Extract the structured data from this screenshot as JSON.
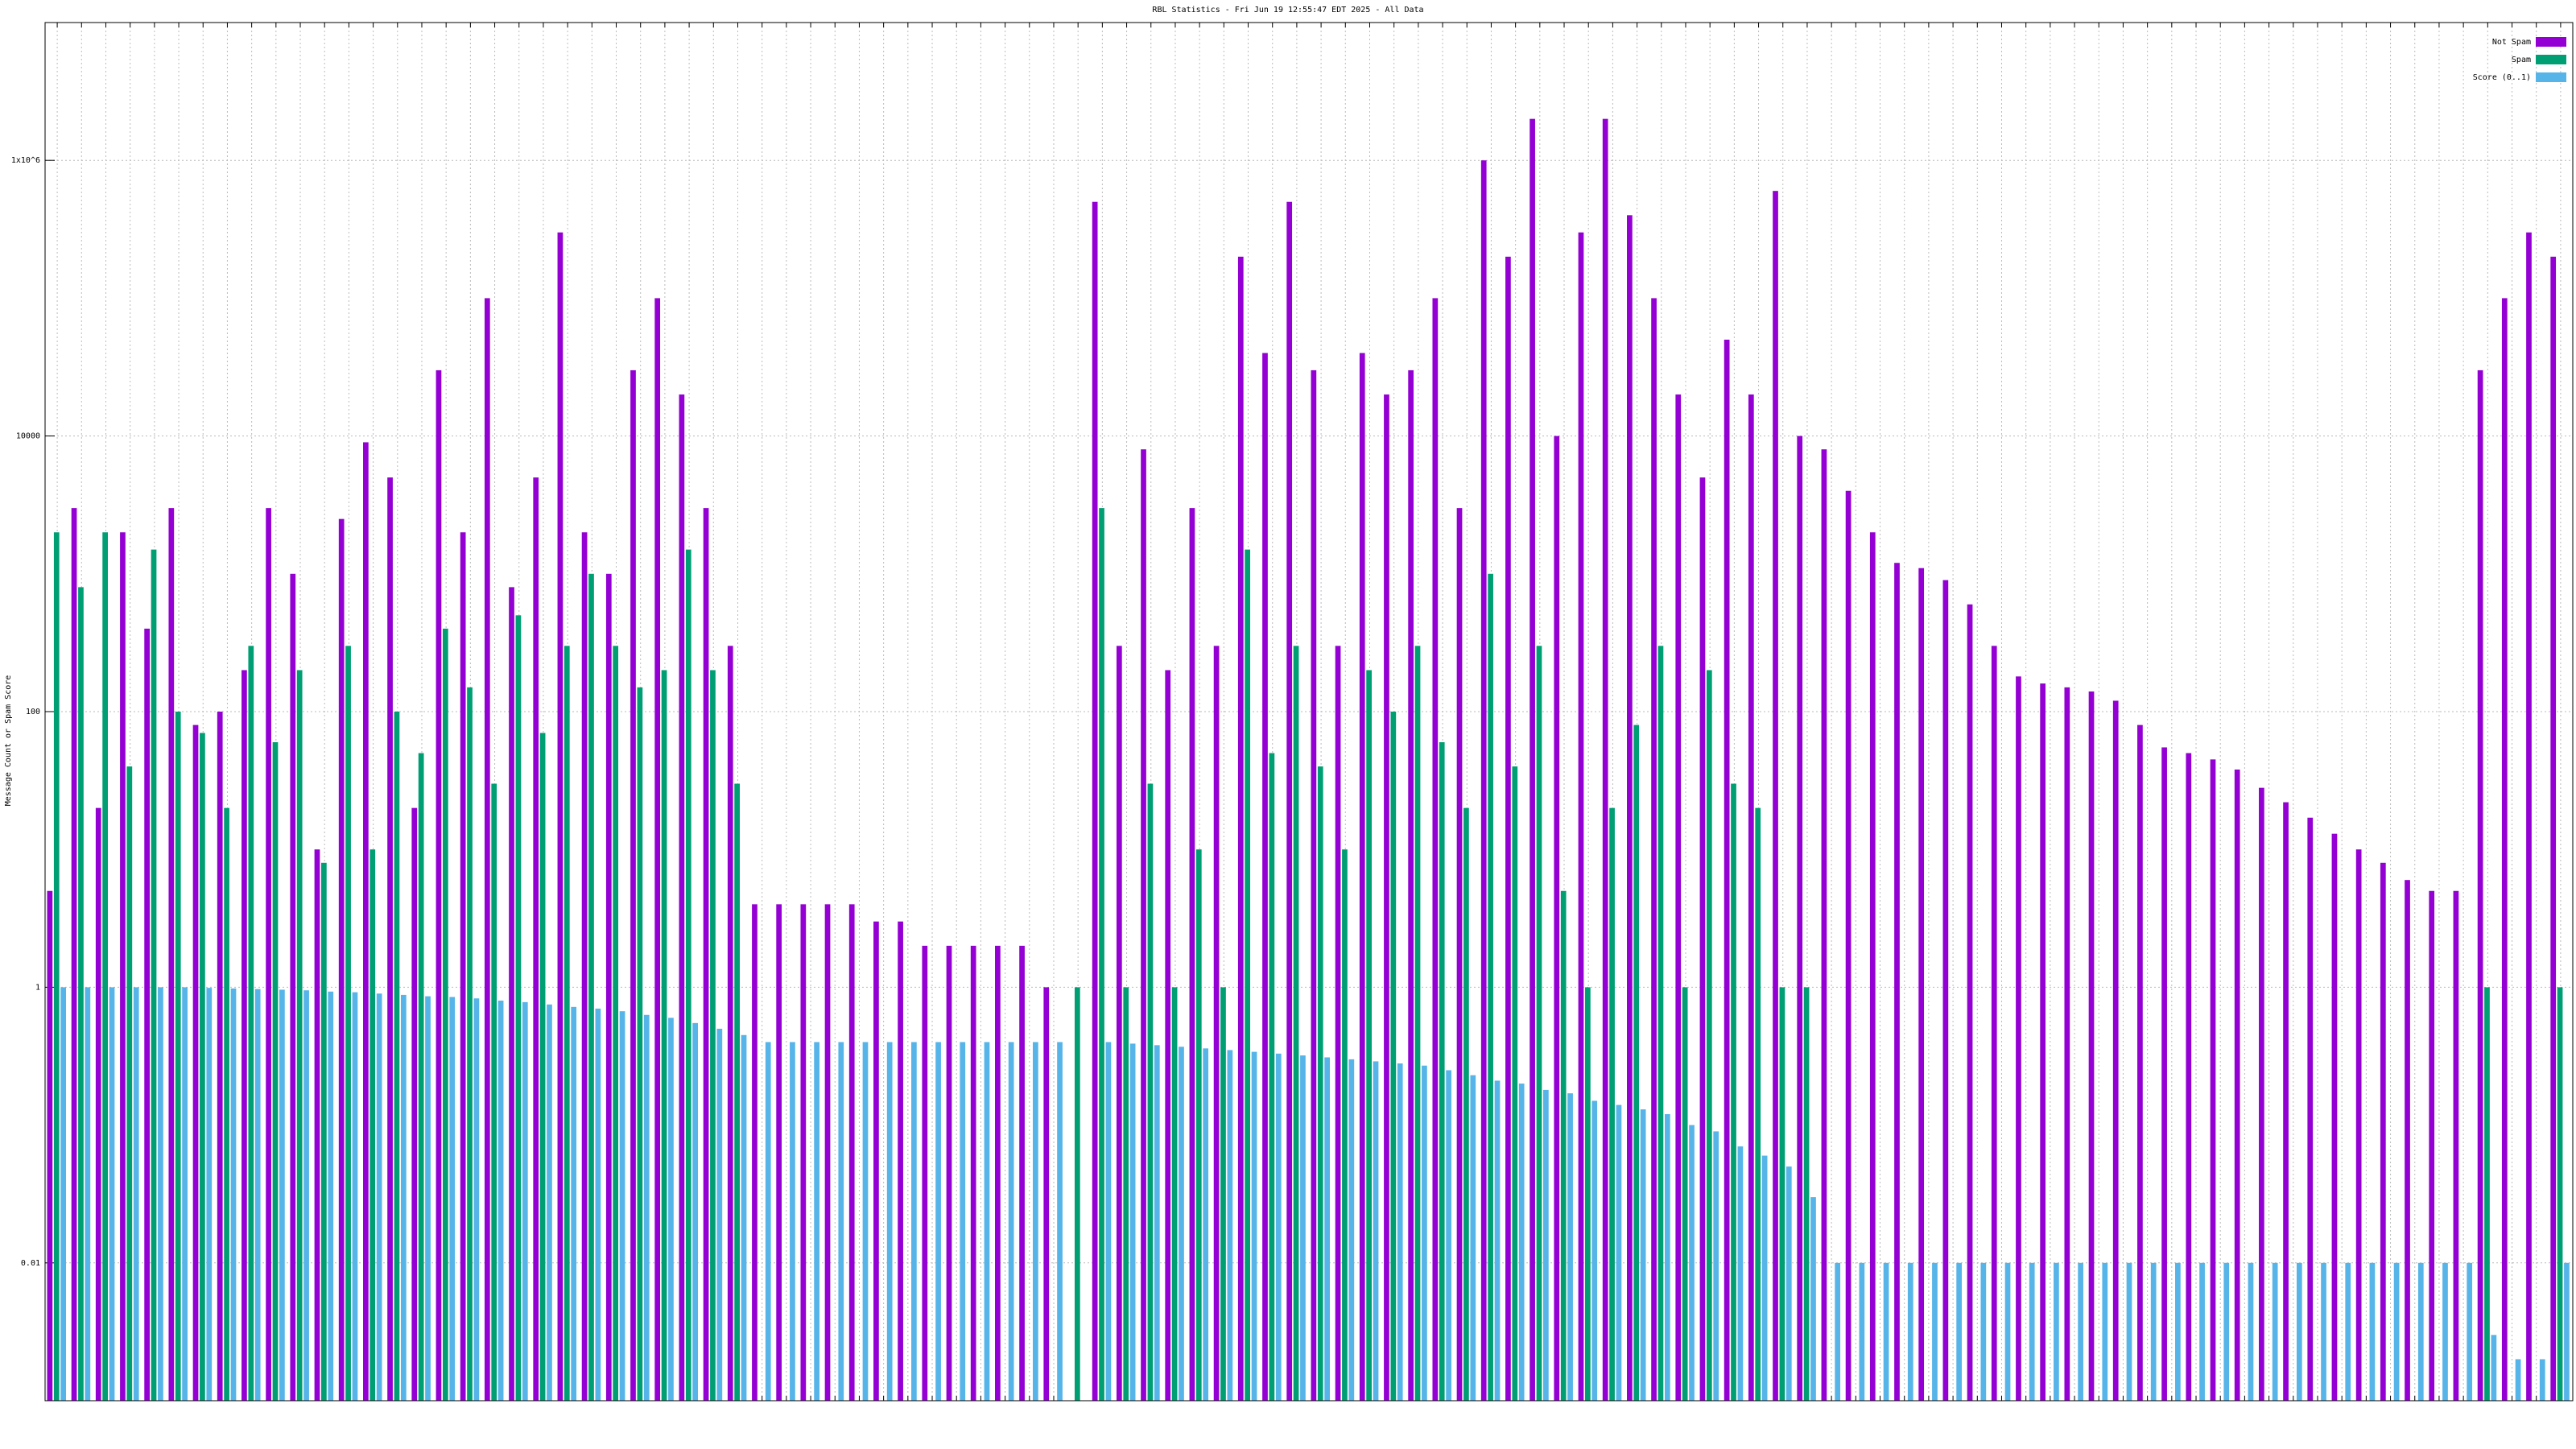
{
  "chart_data": {
    "type": "bar",
    "log_scale": true,
    "grid": true,
    "legend_position": "top-right",
    "title": "RBL Statistics - Fri Jun 19 12:55:47 EDT 2025 - All Data",
    "ylabel": "Message Count or Spam Score",
    "ylim": [
      0.001,
      10000000
    ],
    "yticks": [
      0.01,
      1,
      100,
      10000,
      {
        "value": 1000000,
        "label": "1x10^6"
      }
    ],
    "categories": [
      null,
      null,
      null,
      null,
      null,
      null,
      null,
      null,
      null,
      null,
      null,
      null,
      null,
      null,
      null,
      null,
      null,
      null,
      null,
      null,
      null,
      null,
      null,
      null,
      null,
      null,
      null,
      null,
      null,
      null,
      null,
      null,
      null,
      null,
      null,
      null,
      null,
      null,
      null,
      null,
      null,
      null,
      null,
      null,
      null,
      null,
      null,
      null,
      null,
      null,
      null,
      null,
      null,
      null,
      null,
      null,
      null,
      null,
      null,
      null,
      null,
      null,
      null,
      null,
      null,
      null,
      null,
      null,
      null,
      null,
      null,
      null,
      null,
      null,
      null,
      null,
      null,
      null,
      null,
      null,
      null,
      null,
      null,
      null,
      null,
      null,
      null,
      null,
      null,
      null,
      null,
      null,
      null,
      null,
      null,
      null,
      null,
      null,
      null,
      null,
      null,
      null,
      null,
      null
    ],
    "series": [
      {
        "name": "Not Spam",
        "color": "#9400d3",
        "values": [
          5,
          3000,
          20,
          2000,
          400,
          3000,
          80,
          100,
          200,
          3000,
          1000,
          10,
          2500,
          9000,
          5000,
          20,
          30000,
          2000,
          100000,
          800,
          5000,
          300000,
          2000,
          1000,
          30000,
          100000,
          20000,
          3000,
          300,
          4,
          4,
          4,
          4,
          4,
          3,
          3,
          2,
          2,
          2,
          2,
          2,
          1,
          null,
          500000,
          300,
          8000,
          200,
          3000,
          300,
          200000,
          40000,
          500000,
          30000,
          300,
          40000,
          20000,
          30000,
          100000,
          3000,
          1000000,
          200000,
          2000000,
          10000,
          300000,
          2000000,
          400000,
          100000,
          20000,
          5000,
          50000,
          20000,
          600000,
          10000,
          8000,
          4000,
          2000,
          1200,
          1100,
          900,
          600,
          300,
          180,
          160,
          150,
          140,
          120,
          80,
          55,
          50,
          45,
          38,
          28,
          22,
          17,
          13,
          10,
          8,
          6,
          5,
          5,
          30000,
          100000,
          300000,
          200000
        ]
      },
      {
        "name": "Spam",
        "color": "#009e73",
        "values": [
          2000,
          800,
          2000,
          40,
          1500,
          100,
          70,
          20,
          300,
          60,
          200,
          8,
          300,
          10,
          100,
          50,
          400,
          150,
          30,
          500,
          70,
          300,
          1000,
          300,
          150,
          200,
          1500,
          200,
          30,
          null,
          null,
          null,
          null,
          null,
          null,
          null,
          null,
          null,
          null,
          null,
          null,
          null,
          1,
          3000,
          1,
          30,
          1,
          10,
          1,
          1500,
          50,
          300,
          40,
          10,
          200,
          100,
          300,
          60,
          20,
          1000,
          40,
          300,
          5,
          1,
          20,
          80,
          300,
          1,
          200,
          30,
          20,
          1,
          1,
          null,
          null,
          null,
          null,
          null,
          null,
          null,
          null,
          null,
          null,
          null,
          null,
          null,
          null,
          null,
          null,
          null,
          null,
          null,
          null,
          null,
          null,
          null,
          null,
          null,
          null,
          null,
          1,
          null,
          null,
          1
        ]
      },
      {
        "name": "Score (0..1)",
        "color": "#56b4e9",
        "values": [
          1,
          1,
          1,
          1,
          1,
          1,
          0.99,
          0.98,
          0.97,
          0.96,
          0.95,
          0.93,
          0.92,
          0.9,
          0.88,
          0.86,
          0.85,
          0.83,
          0.8,
          0.78,
          0.75,
          0.72,
          0.7,
          0.67,
          0.63,
          0.6,
          0.55,
          0.5,
          0.45,
          0.4,
          0.4,
          0.4,
          0.4,
          0.4,
          0.4,
          0.4,
          0.4,
          0.4,
          0.4,
          0.4,
          0.4,
          0.4,
          null,
          0.4,
          0.39,
          0.38,
          0.37,
          0.36,
          0.35,
          0.34,
          0.33,
          0.32,
          0.31,
          0.3,
          0.29,
          0.28,
          0.27,
          0.25,
          0.23,
          0.21,
          0.2,
          0.18,
          0.17,
          0.15,
          0.14,
          0.13,
          0.12,
          0.1,
          0.09,
          0.07,
          0.06,
          0.05,
          0.03,
          0.01,
          0.01,
          0.01,
          0.01,
          0.01,
          0.01,
          0.01,
          0.01,
          0.01,
          0.01,
          0.01,
          0.01,
          0.01,
          0.01,
          0.01,
          0.01,
          0.01,
          0.01,
          0.01,
          0.01,
          0.01,
          0.01,
          0.01,
          0.01,
          0.01,
          0.01,
          0.01,
          0.003,
          0.002,
          0.002,
          0.01
        ]
      }
    ]
  }
}
